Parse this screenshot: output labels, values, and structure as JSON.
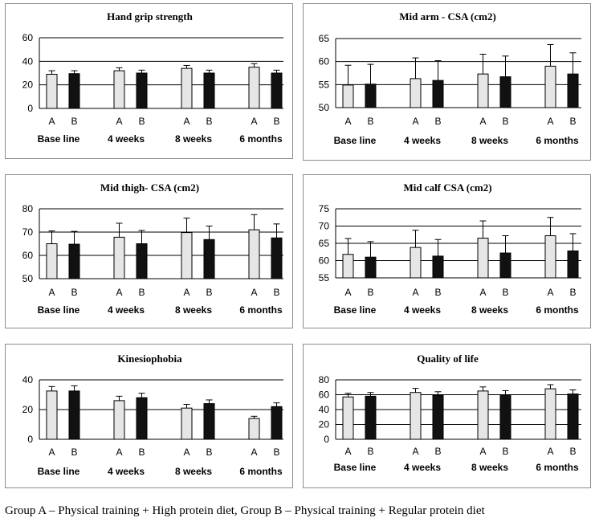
{
  "chart_data": [
    {
      "type": "bar",
      "title": "Hand grip strength",
      "ylim": [
        0,
        60
      ],
      "yticks": [
        0,
        20,
        40,
        60
      ],
      "groups": [
        "A",
        "B"
      ],
      "periods": [
        "Base line",
        "4 weeks",
        "8 weeks",
        "6 months"
      ],
      "series": [
        {
          "name": "A",
          "color": "#e6e6e6",
          "values": [
            29,
            32,
            34,
            35
          ],
          "errors": [
            3,
            2.5,
            2.5,
            3
          ]
        },
        {
          "name": "B",
          "color": "#111111",
          "values": [
            29.5,
            30,
            30,
            30
          ],
          "errors": [
            2.5,
            2.5,
            2.5,
            2.5
          ]
        }
      ]
    },
    {
      "type": "bar",
      "title": "Mid arm - CSA (cm2)",
      "ylim": [
        50,
        65
      ],
      "yticks": [
        50,
        55,
        60,
        65
      ],
      "groups": [
        "A",
        "B"
      ],
      "periods": [
        "Base line",
        "4 weeks",
        "8 weeks",
        "6 months"
      ],
      "series": [
        {
          "name": "A",
          "color": "#e6e6e6",
          "values": [
            54.9,
            56.3,
            57.3,
            59
          ],
          "errors": [
            4.3,
            4.5,
            4.3,
            4.7
          ]
        },
        {
          "name": "B",
          "color": "#111111",
          "values": [
            55.1,
            55.9,
            56.7,
            57.3
          ],
          "errors": [
            4.3,
            4.3,
            4.5,
            4.6
          ]
        }
      ]
    },
    {
      "type": "bar",
      "title": "Mid thigh- CSA (cm2)",
      "ylim": [
        50,
        80
      ],
      "yticks": [
        50,
        60,
        70,
        80
      ],
      "groups": [
        "A",
        "B"
      ],
      "periods": [
        "Base line",
        "4 weeks",
        "8 weeks",
        "6 months"
      ],
      "series": [
        {
          "name": "A",
          "color": "#e6e6e6",
          "values": [
            65,
            67.8,
            69.8,
            71
          ],
          "errors": [
            5.5,
            6,
            6.2,
            6.5
          ]
        },
        {
          "name": "B",
          "color": "#111111",
          "values": [
            64.8,
            65,
            66.8,
            67.5
          ],
          "errors": [
            5.5,
            5.7,
            5.8,
            6
          ]
        }
      ]
    },
    {
      "type": "bar",
      "title": "Mid calf CSA (cm2)",
      "ylim": [
        55,
        75
      ],
      "yticks": [
        55,
        60,
        65,
        70,
        75
      ],
      "groups": [
        "A",
        "B"
      ],
      "periods": [
        "Base line",
        "4 weeks",
        "8 weeks",
        "6 months"
      ],
      "series": [
        {
          "name": "A",
          "color": "#e6e6e6",
          "values": [
            61.8,
            63.8,
            66.5,
            67.2
          ],
          "errors": [
            4.6,
            5,
            5,
            5.3
          ]
        },
        {
          "name": "B",
          "color": "#111111",
          "values": [
            61,
            61.3,
            62.2,
            62.8
          ],
          "errors": [
            4.5,
            4.8,
            5,
            5
          ]
        }
      ]
    },
    {
      "type": "bar",
      "title": "Kinesiophobia",
      "ylim": [
        0,
        40
      ],
      "yticks": [
        0,
        20,
        40
      ],
      "groups": [
        "A",
        "B"
      ],
      "periods": [
        "Base line",
        "4 weeks",
        "8 weeks",
        "6 months"
      ],
      "series": [
        {
          "name": "A",
          "color": "#e6e6e6",
          "values": [
            32.5,
            26,
            21,
            14
          ],
          "errors": [
            3,
            3,
            2.5,
            1.5
          ]
        },
        {
          "name": "B",
          "color": "#111111",
          "values": [
            32.5,
            28,
            24,
            22
          ],
          "errors": [
            3.5,
            3,
            2.5,
            2.5
          ]
        }
      ]
    },
    {
      "type": "bar",
      "title": "Quality of life",
      "ylim": [
        0,
        80
      ],
      "yticks": [
        0,
        20,
        40,
        60,
        80
      ],
      "groups": [
        "A",
        "B"
      ],
      "periods": [
        "Base line",
        "4 weeks",
        "8 weeks",
        "6 months"
      ],
      "series": [
        {
          "name": "A",
          "color": "#e6e6e6",
          "values": [
            57,
            63,
            65,
            68
          ],
          "errors": [
            5,
            5.5,
            5.5,
            5.5
          ]
        },
        {
          "name": "B",
          "color": "#111111",
          "values": [
            58,
            59,
            60,
            61
          ],
          "errors": [
            5,
            5,
            5.5,
            5.5
          ]
        }
      ]
    }
  ],
  "caption": "Group A – Physical training + High protein diet, Group B – Physical training + Regular protein diet"
}
